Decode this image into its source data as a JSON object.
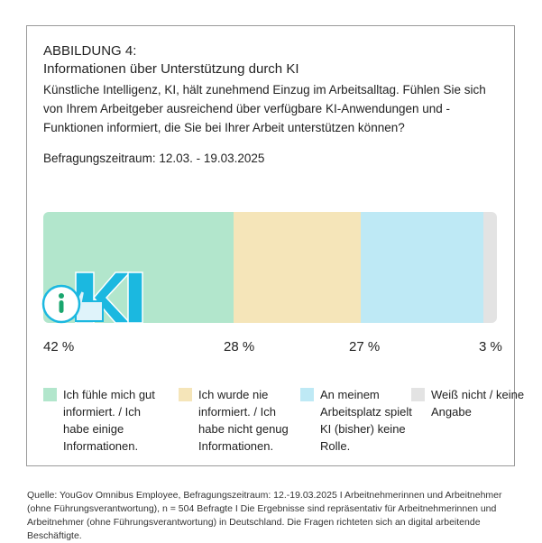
{
  "header": {
    "label": "ABBILDUNG 4:",
    "title": "Informationen über Unterstützung durch KI",
    "question": "Künstliche Intelligenz, KI, hält zunehmend Einzug im Arbeitsalltag. Fühlen Sie sich von Ihrem Arbeitgeber ausreichend über verfügbare KI-Anwendungen und -Funktionen informiert, die Sie bei Ihrer Arbeit unterstützen können?",
    "period": "Befragungszeitraum: 12.03. - 19.03.2025"
  },
  "chart_data": {
    "type": "bar",
    "orientation": "horizontal-stacked",
    "unit": "%",
    "series": [
      {
        "name": "Ich fühle mich gut informiert. / Ich habe einige Informationen.",
        "value": 42,
        "label": "42 %",
        "color": "#b2e6cc"
      },
      {
        "name": "Ich wurde nie informiert. / Ich habe nicht genug Informationen.",
        "value": 28,
        "label": "28 %",
        "color": "#f5e5b9"
      },
      {
        "name": "An meinem Arbeitsplatz spielt KI (bisher) keine Rolle.",
        "value": 27,
        "label": "27 %",
        "color": "#bee9f5"
      },
      {
        "name": "Weiß nicht / keine Angabe",
        "value": 3,
        "label": "3 %",
        "color": "#e3e3e3"
      }
    ]
  },
  "logo": {
    "text": "KI"
  },
  "source": "Quelle: YouGov Omnibus Employee, Befragungszeitraum: 12.-19.03.2025 I Arbeitnehmerinnen und Arbeitnehmer (ohne Führungsverantwortung), n = 504 Befragte I Die Ergebnisse sind repräsentativ für Arbeitnehmerinnen und Arbeitnehmer (ohne Führungsverantwortung) in Deutschland. Die Fragen richteten sich an digital arbeitende Beschäftigte."
}
